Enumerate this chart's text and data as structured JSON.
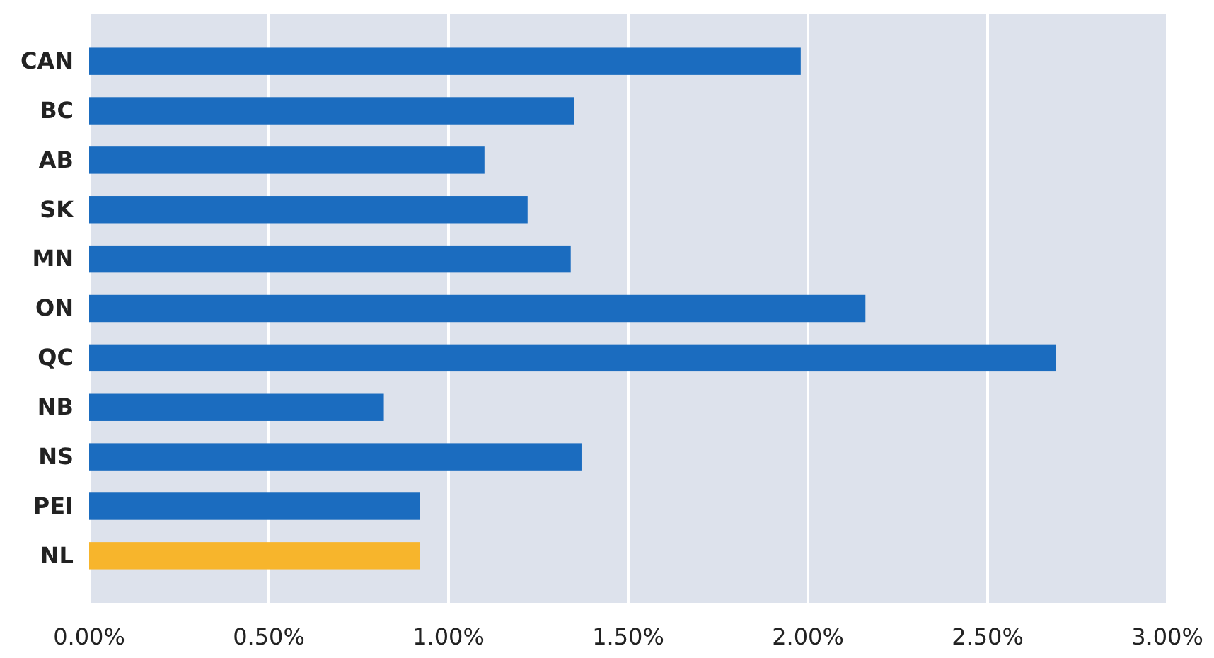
{
  "chart_data": {
    "type": "bar",
    "orientation": "horizontal",
    "categories": [
      "CAN",
      "BC",
      "AB",
      "SK",
      "MN",
      "ON",
      "QC",
      "NB",
      "NS",
      "PEI",
      "NL"
    ],
    "values": [
      1.98,
      1.35,
      1.1,
      1.22,
      1.34,
      2.16,
      2.69,
      0.82,
      1.37,
      0.92,
      0.92
    ],
    "colors": [
      "#1b6cbf",
      "#1b6cbf",
      "#1b6cbf",
      "#1b6cbf",
      "#1b6cbf",
      "#1b6cbf",
      "#1b6cbf",
      "#1b6cbf",
      "#1b6cbf",
      "#1b6cbf",
      "#f7b52c"
    ],
    "xlim": [
      0,
      3
    ],
    "xticks": [
      {
        "value": 0,
        "label": "0.00%"
      },
      {
        "value": 0.5,
        "label": "0.50%"
      },
      {
        "value": 1,
        "label": "1.00%"
      },
      {
        "value": 1.5,
        "label": "1.50%"
      },
      {
        "value": 2,
        "label": "2.00%"
      },
      {
        "value": 2.5,
        "label": "2.50%"
      },
      {
        "value": 3,
        "label": "3.00%"
      }
    ],
    "grid": "x"
  }
}
